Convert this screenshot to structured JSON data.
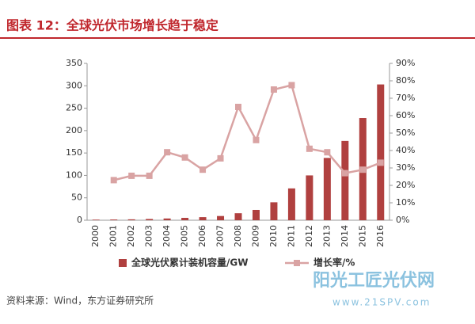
{
  "chart_data": {
    "type": "bar",
    "title": "图表 12：全球光伏市场增长趋于稳定",
    "categories": [
      "2000",
      "2001",
      "2002",
      "2003",
      "2004",
      "2005",
      "2006",
      "2007",
      "2008",
      "2009",
      "2010",
      "2011",
      "2012",
      "2013",
      "2014",
      "2015",
      "2016"
    ],
    "series": [
      {
        "name": "全球光伏累计装机容量/GW",
        "type": "bar",
        "color": "#b0403f",
        "values": [
          1.3,
          1.6,
          2,
          2.8,
          3.9,
          5.3,
          6.9,
          9.4,
          15.6,
          23,
          40,
          71,
          100,
          139,
          177,
          228,
          303
        ]
      },
      {
        "name": "增长率/%",
        "type": "line",
        "axis": "y2",
        "color": "#d9a3a3",
        "values": [
          null,
          23,
          25.5,
          25.5,
          39,
          36,
          29,
          35.5,
          65,
          46,
          75,
          77.5,
          41,
          39,
          27,
          29,
          33
        ]
      }
    ],
    "ylim": [
      0,
      350
    ],
    "yticks": [
      0,
      50,
      100,
      150,
      200,
      250,
      300,
      350
    ],
    "y2lim": [
      0,
      90
    ],
    "y2ticks": [
      {
        "value": 0,
        "label": "0%"
      },
      {
        "value": 10,
        "label": "10%"
      },
      {
        "value": 20,
        "label": "20%"
      },
      {
        "value": 30,
        "label": "30%"
      },
      {
        "value": 40,
        "label": "40%"
      },
      {
        "value": 50,
        "label": "50%"
      },
      {
        "value": 60,
        "label": "60%"
      },
      {
        "value": 70,
        "label": "70%"
      },
      {
        "value": 80,
        "label": "80%"
      },
      {
        "value": 90,
        "label": "90%"
      }
    ],
    "legend": "bottom",
    "source": "资料来源：Wind，东方证券研究所",
    "watermark": [
      "阳光工匠光伏网",
      "www.21SPV.com"
    ]
  }
}
